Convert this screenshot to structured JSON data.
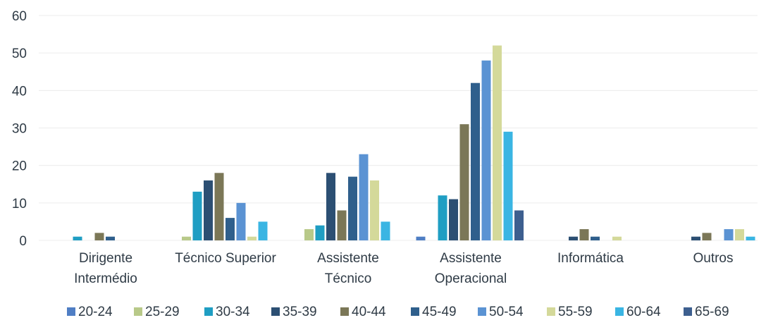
{
  "chart_data": {
    "type": "bar",
    "title": "",
    "xlabel": "",
    "ylabel": "",
    "ylim": [
      0,
      60
    ],
    "yticks": [
      0,
      10,
      20,
      30,
      40,
      50,
      60
    ],
    "grid": true,
    "legend_position": "bottom",
    "categories": [
      [
        "Dirigente",
        "Intermédio"
      ],
      [
        "Técnico Superior"
      ],
      [
        "Assistente",
        "Técnico"
      ],
      [
        "Assistente",
        "Operacional"
      ],
      [
        "Informática"
      ],
      [
        "Outros"
      ]
    ],
    "series": [
      {
        "name": "20-24",
        "color": "#4f7ec4",
        "values": [
          0,
          0,
          0,
          1,
          0,
          0
        ]
      },
      {
        "name": "25-29",
        "color": "#b8c989",
        "values": [
          0,
          1,
          3,
          0,
          0,
          0
        ]
      },
      {
        "name": "30-34",
        "color": "#1f9ec3",
        "values": [
          1,
          13,
          4,
          12,
          0,
          0
        ]
      },
      {
        "name": "35-39",
        "color": "#2c4f73",
        "values": [
          0,
          16,
          18,
          11,
          1,
          1
        ]
      },
      {
        "name": "40-44",
        "color": "#7b7757",
        "values": [
          2,
          18,
          8,
          31,
          3,
          2
        ]
      },
      {
        "name": "45-49",
        "color": "#2f5f8c",
        "values": [
          1,
          6,
          17,
          42,
          1,
          0
        ]
      },
      {
        "name": "50-54",
        "color": "#5b93d3",
        "values": [
          0,
          10,
          23,
          48,
          0,
          3
        ]
      },
      {
        "name": "55-59",
        "color": "#d4d99a",
        "values": [
          0,
          1,
          16,
          52,
          1,
          3
        ]
      },
      {
        "name": "60-64",
        "color": "#3ab5e3",
        "values": [
          0,
          5,
          5,
          29,
          0,
          1
        ]
      },
      {
        "name": "65-69",
        "color": "#3d5f8f",
        "values": [
          0,
          0,
          0,
          8,
          0,
          0
        ]
      }
    ]
  }
}
